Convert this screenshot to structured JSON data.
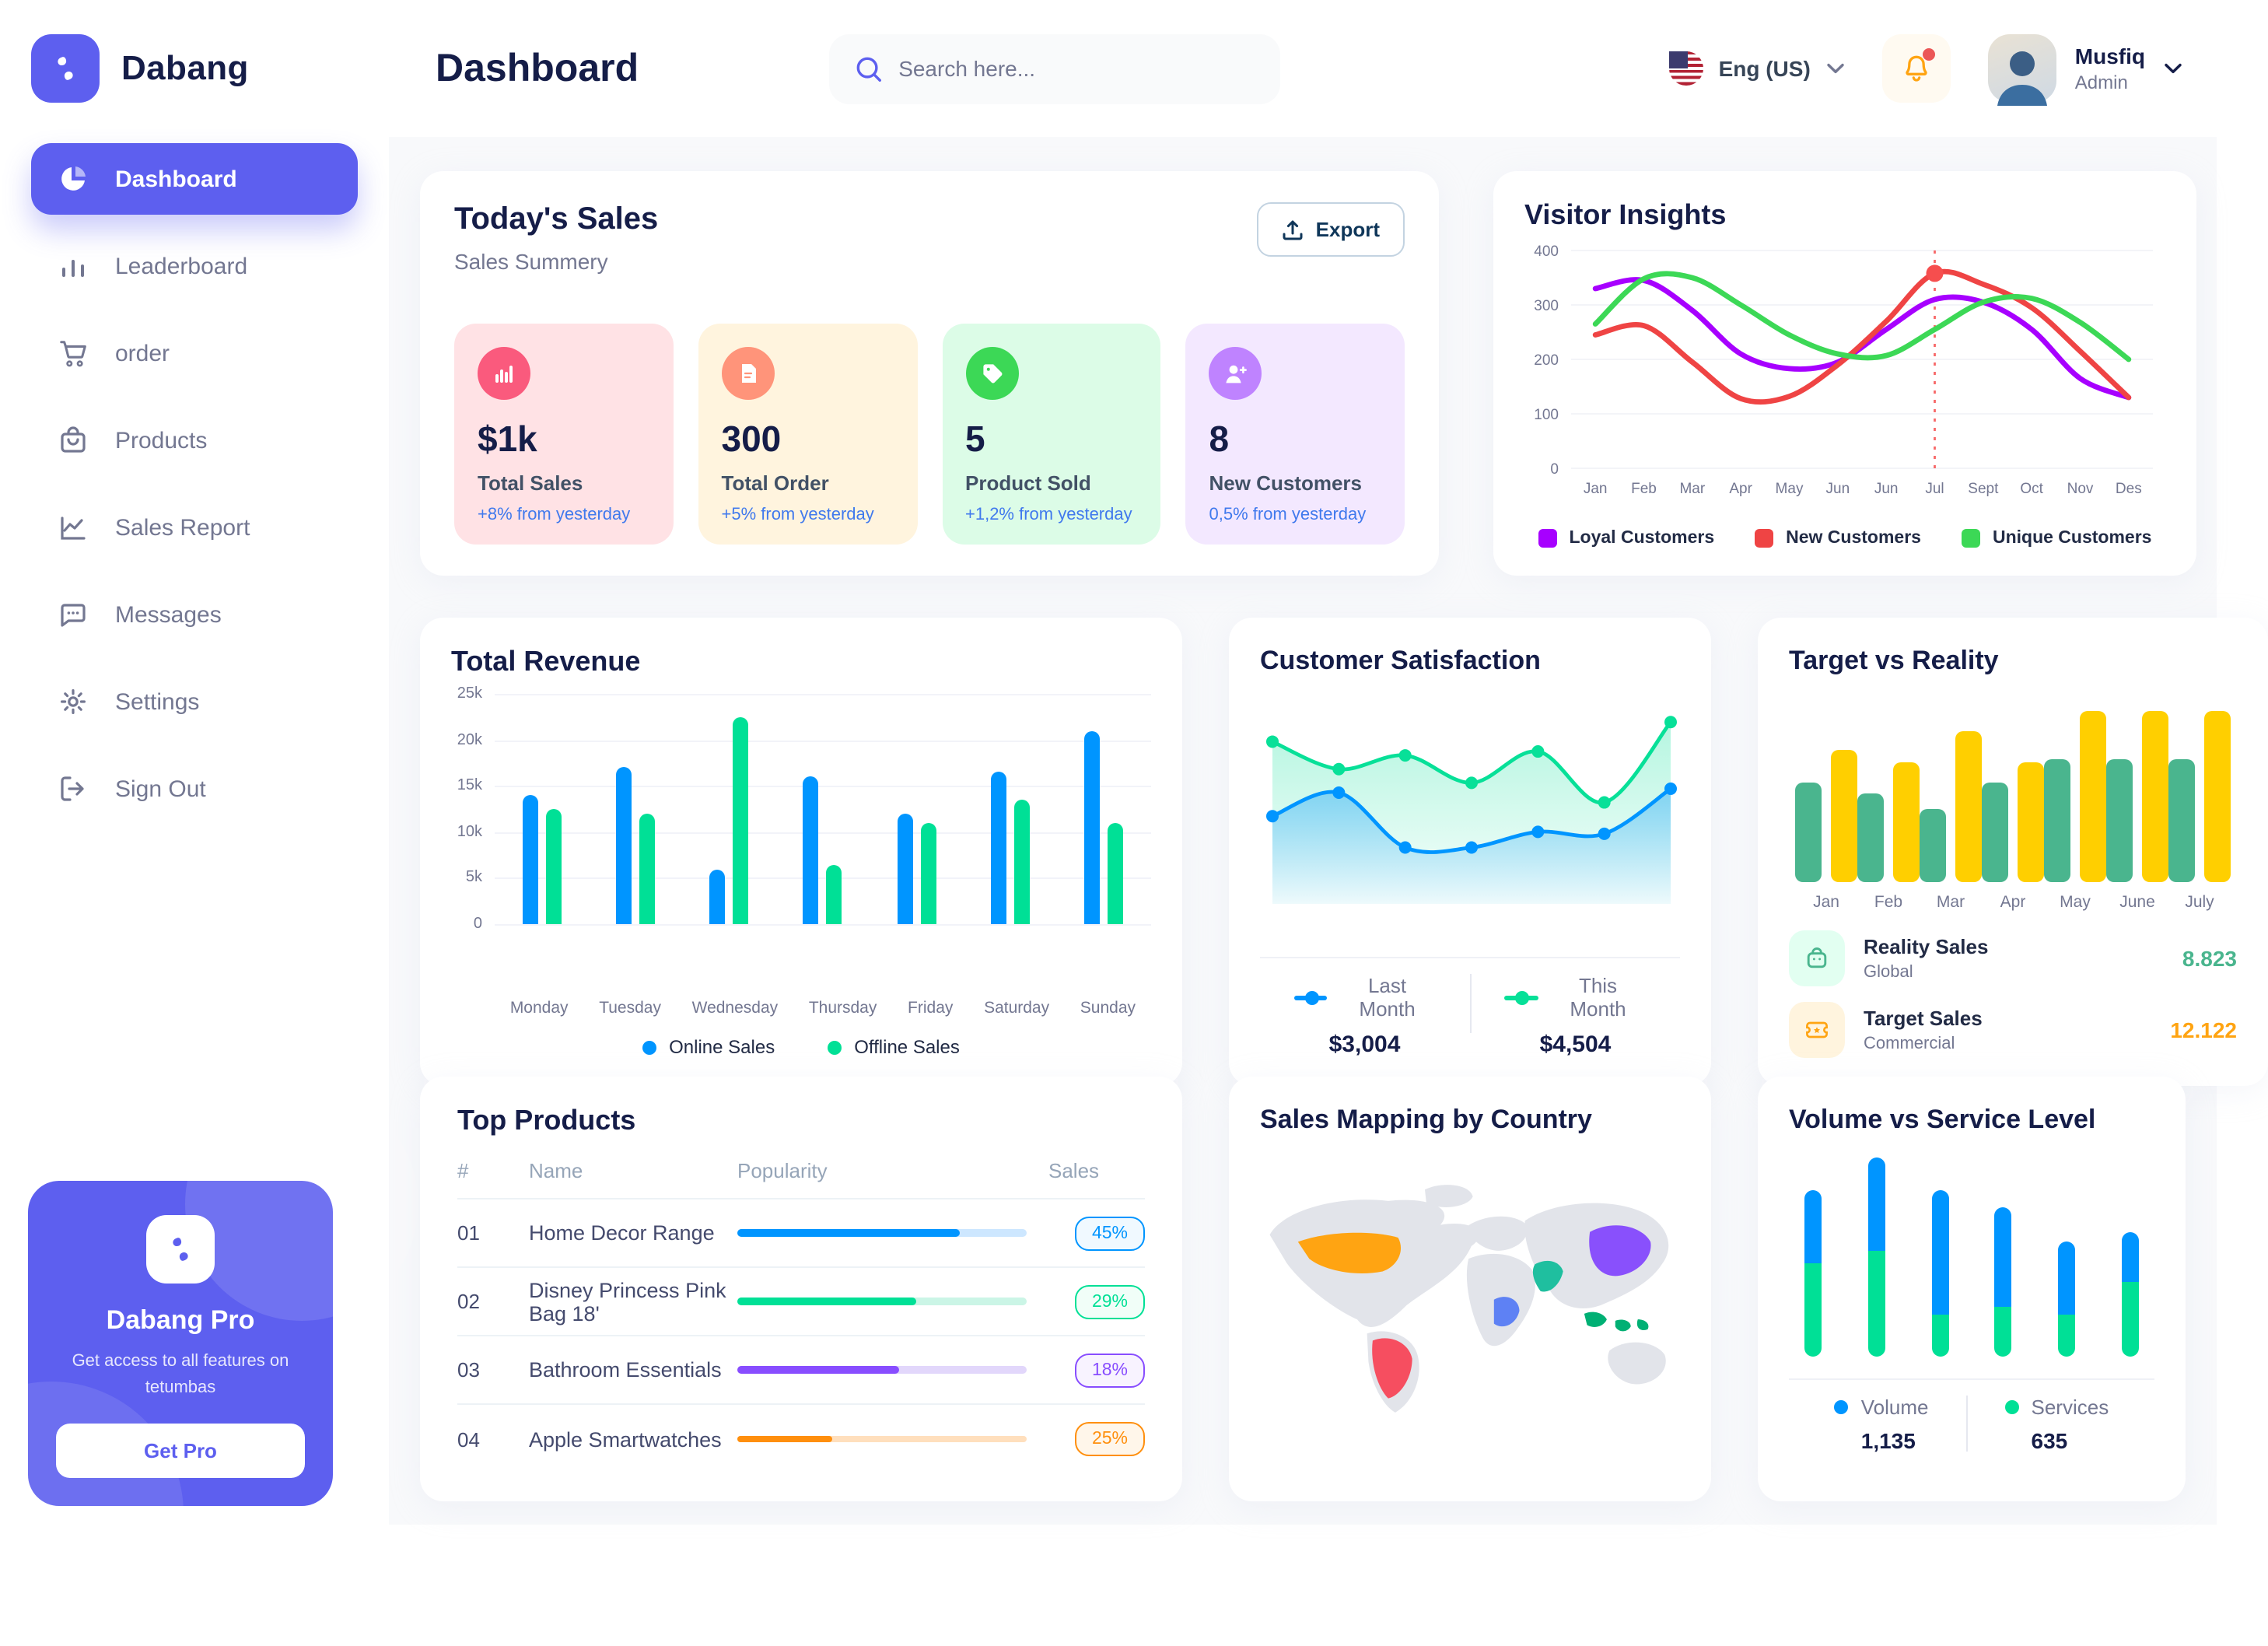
{
  "header": {
    "page_title": "Dashboard",
    "search_placeholder": "Search here...",
    "language": "Eng (US)",
    "user_name": "Musfiq",
    "user_role": "Admin"
  },
  "sidebar": {
    "brand": "Dabang",
    "items": [
      {
        "label": "Dashboard",
        "icon": "pie-chart-icon",
        "active": true
      },
      {
        "label": "Leaderboard",
        "icon": "bar-chart-icon",
        "active": false
      },
      {
        "label": "order",
        "icon": "cart-icon",
        "active": false
      },
      {
        "label": "Products",
        "icon": "bag-icon",
        "active": false
      },
      {
        "label": "Sales Report",
        "icon": "line-chart-icon",
        "active": false
      },
      {
        "label": "Messages",
        "icon": "message-icon",
        "active": false
      },
      {
        "label": "Settings",
        "icon": "gear-icon",
        "active": false
      },
      {
        "label": "Sign Out",
        "icon": "sign-out-icon",
        "active": false
      }
    ],
    "pro": {
      "title": "Dabang Pro",
      "description": "Get access to all features on tetumbas",
      "button_label": "Get Pro"
    }
  },
  "today_sales": {
    "title": "Today's Sales",
    "subtitle": "Sales Summery",
    "export_label": "Export",
    "stats": [
      {
        "value": "$1k",
        "label": "Total Sales",
        "delta": "+8% from yesterday",
        "bg": "#FFE2E5",
        "icon_bg": "#FA5A7D",
        "icon": "bar-graph-icon"
      },
      {
        "value": "300",
        "label": "Total Order",
        "delta": "+5% from yesterday",
        "bg": "#FFF4DE",
        "icon_bg": "#FF947A",
        "icon": "receipt-icon"
      },
      {
        "value": "5",
        "label": "Product Sold",
        "delta": "+1,2% from yesterday",
        "bg": "#DCFCE7",
        "icon_bg": "#3CD856",
        "icon": "tag-icon"
      },
      {
        "value": "8",
        "label": "New Customers",
        "delta": "0,5% from yesterday",
        "bg": "#F3E8FF",
        "icon_bg": "#BF83FF",
        "icon": "user-plus-icon"
      }
    ]
  },
  "visitor_insights": {
    "title": "Visitor Insights",
    "chart_data": {
      "type": "line",
      "x": [
        "Jan",
        "Feb",
        "Mar",
        "Apr",
        "May",
        "Jun",
        "Jun",
        "Jul",
        "Sept",
        "Oct",
        "Nov",
        "Des"
      ],
      "ylim": [
        0,
        400
      ],
      "yticks": [
        0,
        100,
        200,
        300,
        400
      ],
      "grid": true,
      "legend_position": "bottom",
      "series": [
        {
          "name": "Loyal Customers",
          "color": "#A700FF",
          "values": [
            330,
            345,
            290,
            210,
            183,
            195,
            255,
            310,
            305,
            255,
            165,
            130
          ]
        },
        {
          "name": "New Customers",
          "color": "#EF4444",
          "values": [
            245,
            262,
            195,
            128,
            132,
            190,
            270,
            358,
            338,
            295,
            215,
            130
          ]
        },
        {
          "name": "Unique Customers",
          "color": "#3CD856",
          "values": [
            265,
            348,
            350,
            300,
            245,
            210,
            207,
            255,
            305,
            312,
            268,
            200
          ]
        }
      ],
      "highlight": {
        "x_index": 7,
        "series": "New Customers",
        "value": 358,
        "line_color": "#F64E4E"
      }
    }
  },
  "total_revenue": {
    "title": "Total Revenue",
    "chart_data": {
      "type": "bar",
      "categories": [
        "Monday",
        "Tuesday",
        "Wednesday",
        "Thursday",
        "Friday",
        "Saturday",
        "Sunday"
      ],
      "ylim": [
        0,
        25
      ],
      "ytick_labels": [
        "0",
        "5k",
        "10k",
        "15k",
        "20k",
        "25k"
      ],
      "grid": true,
      "legend_position": "bottom",
      "series": [
        {
          "name": "Online Sales",
          "color": "#0095FF",
          "values": [
            14,
            17,
            6,
            16,
            12,
            16.5,
            21
          ]
        },
        {
          "name": "Offline Sales",
          "color": "#00E096",
          "values": [
            12.5,
            12,
            22.5,
            6.5,
            11,
            13.5,
            11
          ]
        }
      ]
    }
  },
  "customer_satisfaction": {
    "title": "Customer Satisfaction",
    "chart_data": {
      "type": "area",
      "x": [
        1,
        2,
        3,
        4,
        5,
        6,
        7
      ],
      "ylim": [
        0,
        100
      ],
      "grid": false,
      "legend_position": "bottom",
      "series": [
        {
          "name": "Last Month",
          "color": "#0095FF",
          "total": "$3,004",
          "values": [
            40,
            52,
            24,
            24,
            32,
            31,
            54
          ]
        },
        {
          "name": "This Month",
          "color": "#07E098",
          "total": "$4,504",
          "values": [
            78,
            64,
            71,
            57,
            73,
            47,
            88
          ]
        }
      ]
    }
  },
  "target_vs_reality": {
    "title": "Target vs Reality",
    "chart_data": {
      "type": "bar",
      "categories": [
        "Jan",
        "Feb",
        "Mar",
        "Apr",
        "May",
        "June",
        "July"
      ],
      "ylim": [
        0,
        15
      ],
      "grid": false,
      "legend_position": "bottom",
      "series": [
        {
          "name": "Reality Sales",
          "subtitle": "Global",
          "color": "#4AB58E",
          "total": "8.823",
          "tile_bg": "#E2FFF1",
          "values": [
            8.2,
            7.2,
            6.0,
            8.2,
            10,
            10,
            10
          ]
        },
        {
          "name": "Target Sales",
          "subtitle": "Commercial",
          "color": "#FFCF00",
          "total_color": "#FFA412",
          "total": "12.122",
          "tile_bg": "#FFF4DE",
          "values": [
            10.8,
            9.8,
            12.3,
            9.8,
            14,
            14,
            14
          ]
        }
      ]
    }
  },
  "top_products": {
    "title": "Top Products",
    "columns": [
      "#",
      "Name",
      "Popularity",
      "Sales"
    ],
    "rows": [
      {
        "num": "01",
        "name": "Home Decor Range",
        "popularity": 77,
        "sales": "45%",
        "color": "#0095FF",
        "track": "#CDE7FF",
        "badge_bg": "#F0F9FF"
      },
      {
        "num": "02",
        "name": "Disney Princess Pink Bag 18'",
        "popularity": 62,
        "sales": "29%",
        "color": "#00E096",
        "track": "#CBF5E6",
        "badge_bg": "#F1FEF8"
      },
      {
        "num": "03",
        "name": "Bathroom Essentials",
        "popularity": 56,
        "sales": "18%",
        "color": "#884DFF",
        "track": "#E2D7FB",
        "badge_bg": "#F8F3FF"
      },
      {
        "num": "04",
        "name": "Apple Smartwatches",
        "popularity": 33,
        "sales": "25%",
        "color": "#FF8F0D",
        "track": "#FFDFBD",
        "badge_bg": "#FFF6EA"
      }
    ]
  },
  "sales_map": {
    "title": "Sales Mapping by Country",
    "land_color": "#E2E4EA",
    "colors": {
      "usa": "#FFA412",
      "brazil": "#F64E60",
      "saudi_arabia": "#1FBF9F",
      "congo": "#5E81F4",
      "china": "#8950FC",
      "indonesia": "#00B074"
    }
  },
  "volume_service": {
    "title": "Volume vs Service Level",
    "chart_data": {
      "type": "bar",
      "stacked": true,
      "legend_position": "bottom",
      "series": [
        {
          "name": "Volume",
          "color": "#0095FF",
          "total": "1,135",
          "values": [
            44,
            57,
            75,
            61,
            44,
            31
          ]
        },
        {
          "name": "Services",
          "color": "#00E096",
          "total": "635",
          "values": [
            57,
            64,
            26,
            30,
            26,
            45
          ]
        }
      ]
    }
  }
}
